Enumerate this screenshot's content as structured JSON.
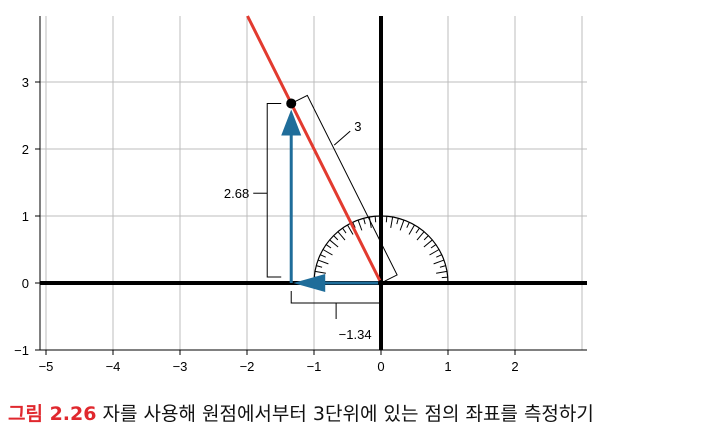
{
  "figure": {
    "x_ticks": [
      "−5",
      "−4",
      "−3",
      "−2",
      "−1",
      "0",
      "1",
      "2"
    ],
    "y_ticks": [
      "−1",
      "0",
      "1",
      "2",
      "3"
    ],
    "annotations": {
      "radius": "3",
      "y_coord": "2.68",
      "x_coord": "−1.34"
    },
    "point": {
      "x": -1.34,
      "y": 2.68
    },
    "colors": {
      "line": "#e23a2f",
      "vector": "#1f6d9a",
      "grid": "#bcbcbc",
      "axis": "#000000"
    }
  },
  "caption": {
    "label": "그림 2.26",
    "text": " 자를 사용해 원점에서부터 3단위에 있는 점의 좌표를 측정하기"
  }
}
